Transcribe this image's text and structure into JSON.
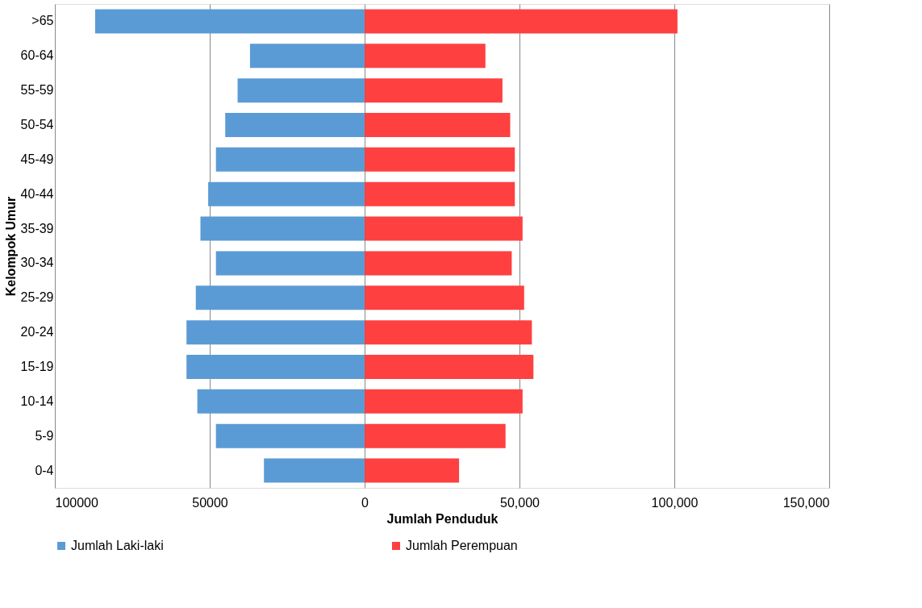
{
  "chart_data": {
    "type": "bar",
    "orientation": "horizontal",
    "xlabel": "Jumlah Penduduk",
    "ylabel": "Kelompok Umur",
    "categories": [
      ">65",
      "60-64",
      "55-59",
      "50-54",
      "45-49",
      "40-44",
      "35-39",
      "30-34",
      "25-29",
      "20-24",
      "15-19",
      "10-14",
      "5-9",
      "0-4"
    ],
    "series": [
      {
        "name": "Jumlah Laki-laki",
        "color": "#5b9bd5",
        "values": [
          -87000,
          -37000,
          -41000,
          -45000,
          -48000,
          -50500,
          -53000,
          -48000,
          -54500,
          -57500,
          -57500,
          -54000,
          -48000,
          -32500
        ]
      },
      {
        "name": "Jumlah Perempuan",
        "color": "#ff4040",
        "values": [
          101000,
          39000,
          44500,
          47000,
          48500,
          48500,
          51000,
          47500,
          51500,
          54000,
          54500,
          51000,
          45500,
          30500
        ]
      }
    ],
    "xlim": [
      -100000,
      150000
    ],
    "xticks": [
      {
        "value": -100000,
        "label": "100000"
      },
      {
        "value": -50000,
        "label": "50000"
      },
      0,
      {
        "value": 50000,
        "label": "50,000"
      },
      {
        "value": 100000,
        "label": "100,000"
      },
      {
        "value": 150000,
        "label": "150,000"
      }
    ],
    "stacked": true,
    "grid": "x",
    "legend": "bottom"
  }
}
